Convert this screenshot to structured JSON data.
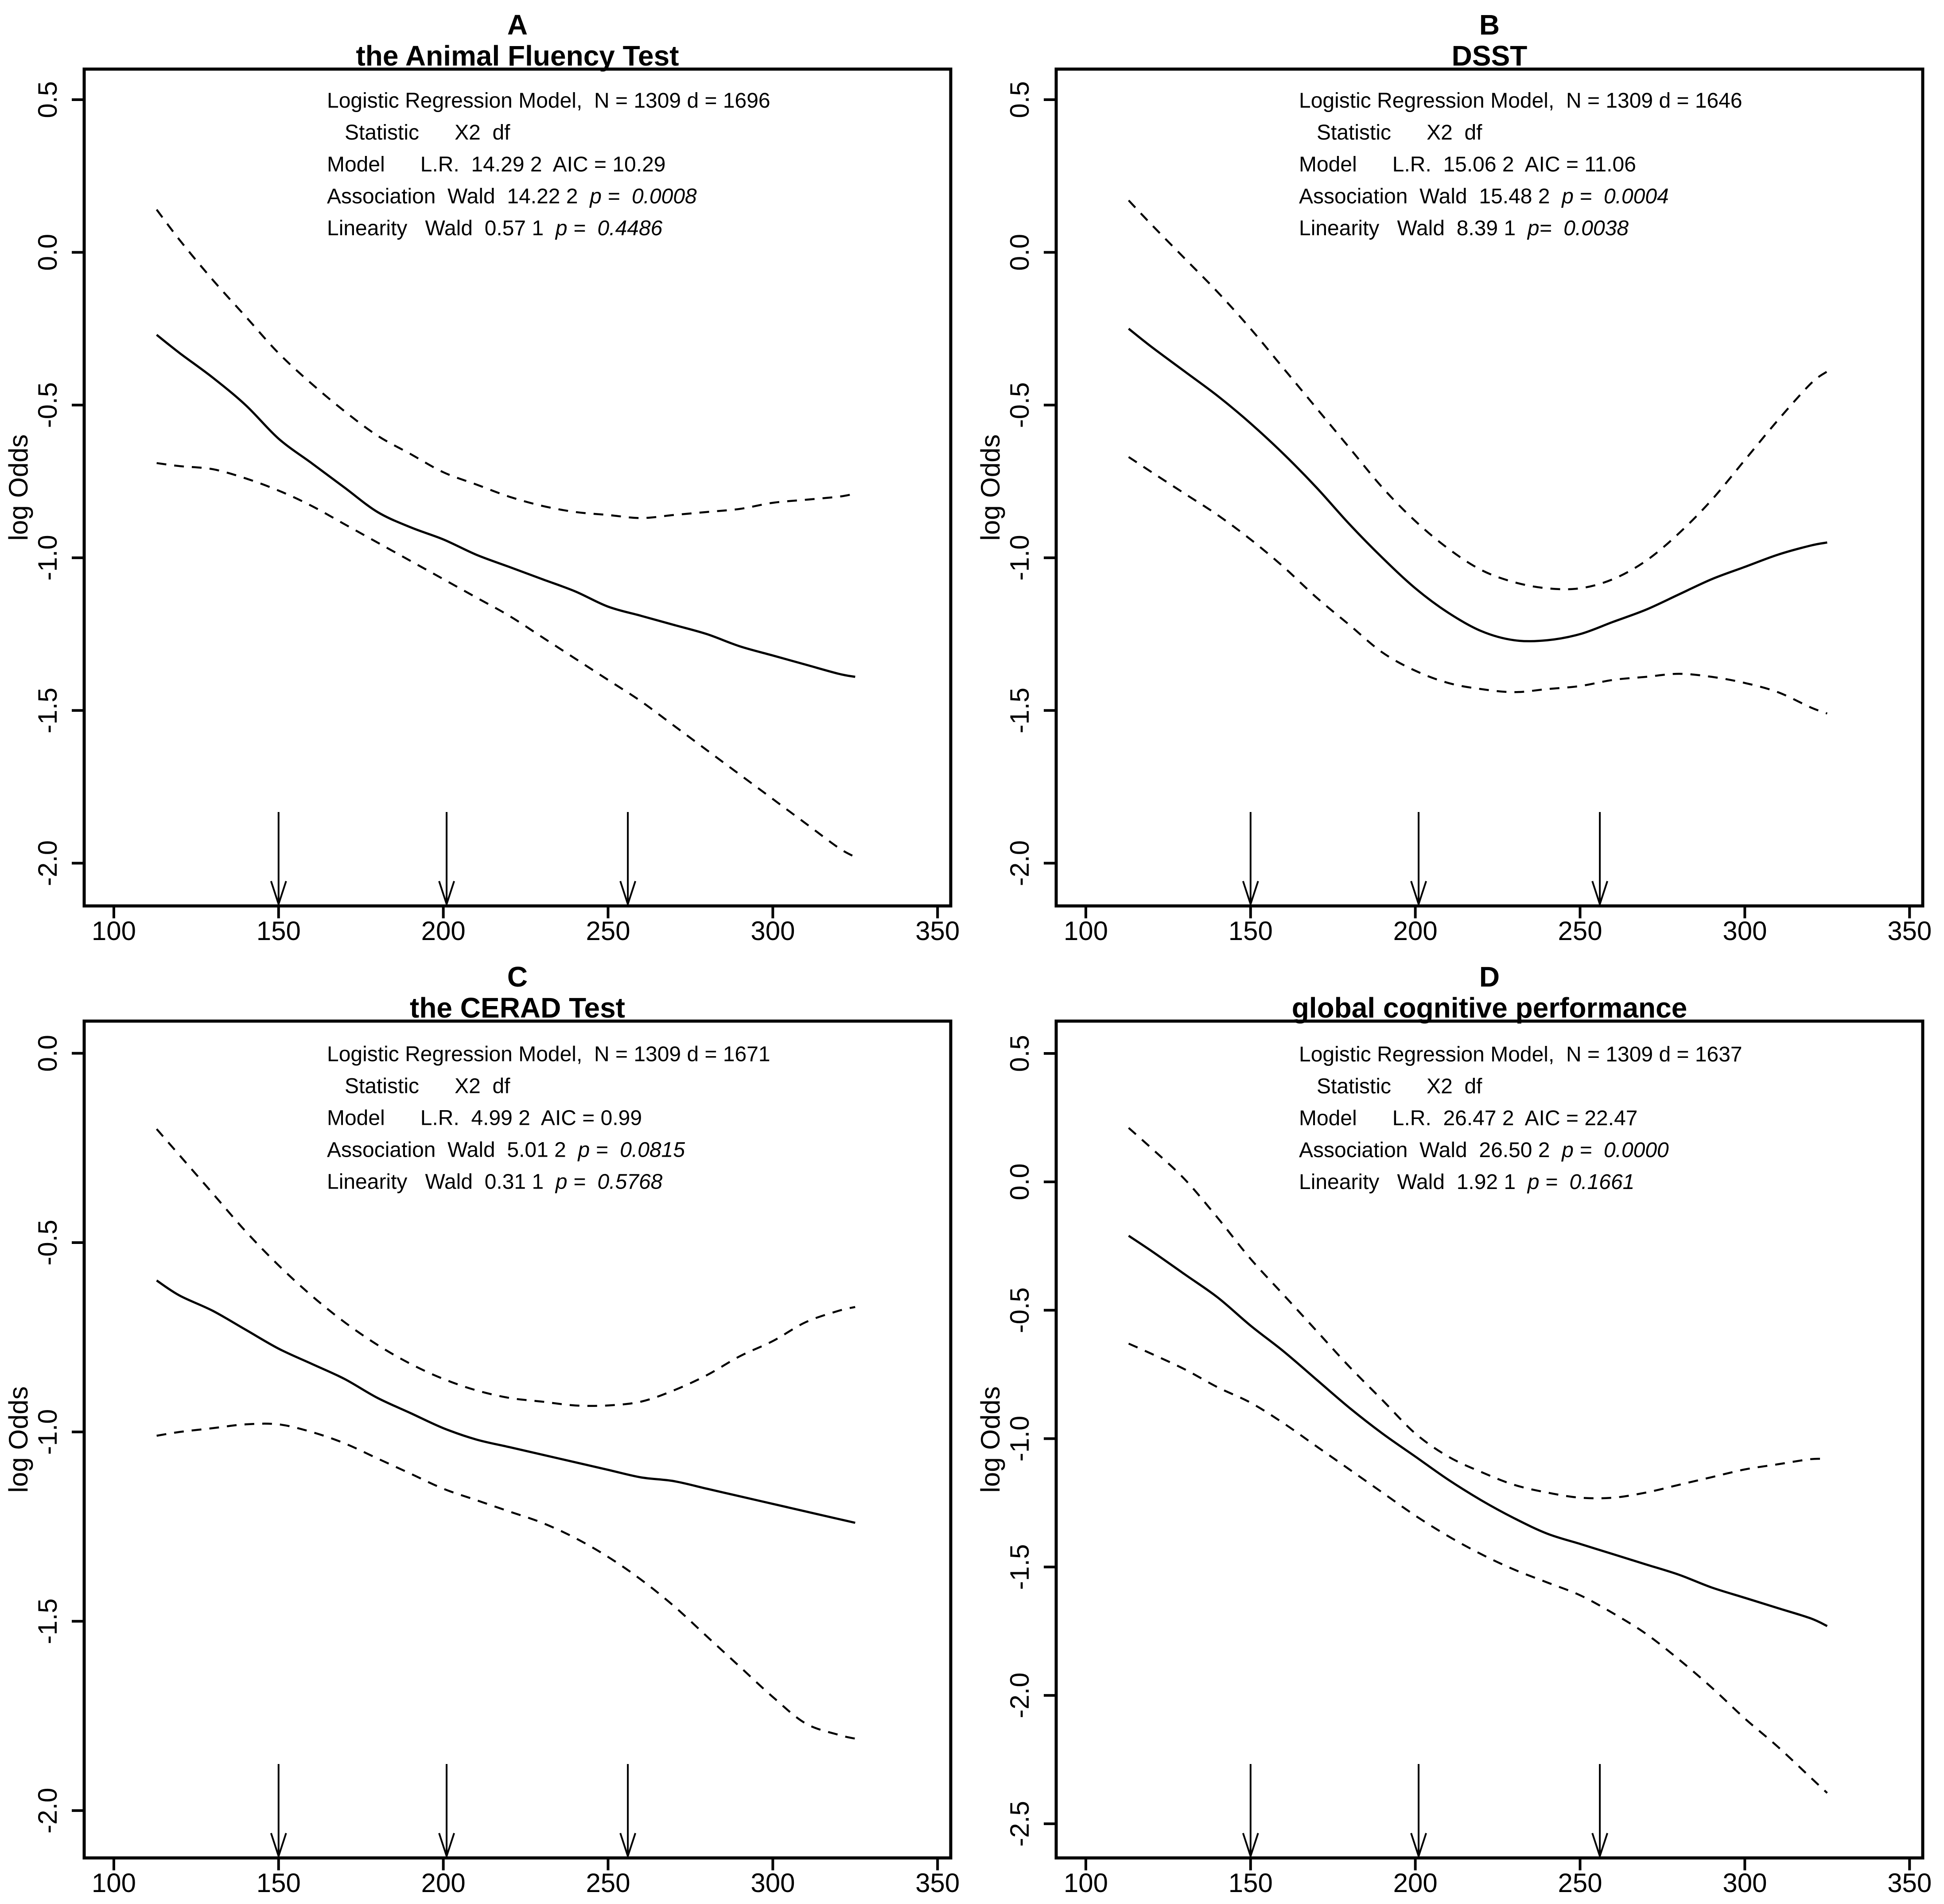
{
  "page": {
    "background": "#ffffff",
    "ink": "#000000"
  },
  "figure": {
    "description_visible_text_only": true,
    "panels_order": [
      "A",
      "B",
      "C",
      "D"
    ]
  },
  "chart_data": [
    {
      "type": "line",
      "panel_label": "A",
      "title": "the Animal Fluency Test",
      "ylabel": "log Odds",
      "xlabel": "",
      "grid": false,
      "legend": "none",
      "x_ticks": [
        100,
        150,
        200,
        250,
        300,
        350
      ],
      "y_tick_labels": [
        "0.5",
        "0.0",
        "-0.5",
        "-1.0",
        "-1.5",
        "-2.0"
      ],
      "x_range": [
        91,
        354
      ],
      "y_range": [
        0.6,
        -2.14
      ],
      "knot_arrows_x": [
        150,
        201,
        256
      ],
      "stats_lines": [
        {
          "text": "Logistic Regression Model,  N = 1309 d = 1696"
        },
        {
          "text": "   Statistic      X2  df"
        },
        {
          "text": "Model      L.R.  14.29 2  AIC = 10.29"
        },
        {
          "text": "Association  Wald  14.22 2  ",
          "italic": "p =  0.0008"
        },
        {
          "text": "Linearity   Wald  0.57 1  ",
          "italic": "p =  0.4486"
        }
      ],
      "x": [
        113,
        120,
        130,
        140,
        150,
        160,
        170,
        180,
        190,
        200,
        210,
        220,
        230,
        240,
        250,
        260,
        270,
        280,
        290,
        300,
        310,
        320,
        325
      ],
      "series": [
        {
          "name": "log odds estimate",
          "style": "solid",
          "values": [
            -0.27,
            -0.33,
            -0.41,
            -0.5,
            -0.61,
            -0.69,
            -0.77,
            -0.85,
            -0.9,
            -0.94,
            -0.99,
            -1.03,
            -1.07,
            -1.11,
            -1.16,
            -1.19,
            -1.22,
            -1.25,
            -1.29,
            -1.32,
            -1.35,
            -1.38,
            -1.39
          ]
        },
        {
          "name": "upper 95% CI",
          "style": "dashed",
          "values": [
            0.14,
            0.04,
            -0.09,
            -0.21,
            -0.33,
            -0.43,
            -0.52,
            -0.6,
            -0.66,
            -0.72,
            -0.76,
            -0.8,
            -0.83,
            -0.85,
            -0.86,
            -0.87,
            -0.86,
            -0.85,
            -0.84,
            -0.82,
            -0.81,
            -0.8,
            -0.79
          ]
        },
        {
          "name": "lower 95% CI",
          "style": "dashed",
          "values": [
            -0.69,
            -0.7,
            -0.71,
            -0.74,
            -0.78,
            -0.83,
            -0.89,
            -0.95,
            -1.01,
            -1.07,
            -1.13,
            -1.19,
            -1.26,
            -1.33,
            -1.4,
            -1.47,
            -1.55,
            -1.63,
            -1.71,
            -1.79,
            -1.87,
            -1.95,
            -1.98
          ]
        }
      ]
    },
    {
      "type": "line",
      "panel_label": "B",
      "title": "DSST",
      "ylabel": "log Odds",
      "xlabel": "",
      "grid": false,
      "legend": "none",
      "x_ticks": [
        100,
        150,
        200,
        250,
        300,
        350
      ],
      "y_tick_labels": [
        "0.5",
        "0.0",
        "-0.5",
        "-1.0",
        "-1.5",
        "-2.0"
      ],
      "x_range": [
        91,
        354
      ],
      "y_range": [
        0.6,
        -2.14
      ],
      "knot_arrows_x": [
        150,
        201,
        256
      ],
      "stats_lines": [
        {
          "text": "Logistic Regression Model,  N = 1309 d = 1646"
        },
        {
          "text": "   Statistic      X2  df"
        },
        {
          "text": "Model      L.R.  15.06 2  AIC = 11.06"
        },
        {
          "text": "Association  Wald  15.48 2  ",
          "italic": "p =  0.0004"
        },
        {
          "text": "Linearity   Wald  8.39 1  ",
          "italic": "p=  0.0038"
        }
      ],
      "x": [
        113,
        120,
        130,
        140,
        150,
        160,
        170,
        180,
        190,
        200,
        210,
        220,
        230,
        240,
        250,
        260,
        270,
        280,
        290,
        300,
        310,
        320,
        325
      ],
      "series": [
        {
          "name": "log odds estimate",
          "style": "solid",
          "values": [
            -0.25,
            -0.31,
            -0.39,
            -0.47,
            -0.56,
            -0.66,
            -0.77,
            -0.89,
            -1.0,
            -1.1,
            -1.18,
            -1.24,
            -1.27,
            -1.27,
            -1.25,
            -1.21,
            -1.17,
            -1.12,
            -1.07,
            -1.03,
            -0.99,
            -0.96,
            -0.95
          ]
        },
        {
          "name": "upper 95% CI",
          "style": "dashed",
          "values": [
            0.17,
            0.09,
            -0.02,
            -0.13,
            -0.25,
            -0.38,
            -0.51,
            -0.64,
            -0.77,
            -0.88,
            -0.97,
            -1.04,
            -1.08,
            -1.1,
            -1.1,
            -1.07,
            -1.01,
            -0.92,
            -0.81,
            -0.68,
            -0.55,
            -0.43,
            -0.39
          ]
        },
        {
          "name": "lower 95% CI",
          "style": "dashed",
          "values": [
            -0.67,
            -0.72,
            -0.79,
            -0.86,
            -0.94,
            -1.03,
            -1.13,
            -1.22,
            -1.31,
            -1.37,
            -1.41,
            -1.43,
            -1.44,
            -1.43,
            -1.42,
            -1.4,
            -1.39,
            -1.38,
            -1.39,
            -1.41,
            -1.44,
            -1.49,
            -1.51
          ]
        }
      ]
    },
    {
      "type": "line",
      "panel_label": "C",
      "title": "the CERAD Test",
      "ylabel": "log Odds",
      "xlabel": "",
      "grid": false,
      "legend": "none",
      "x_ticks": [
        100,
        150,
        200,
        250,
        300,
        350
      ],
      "y_tick_labels": [
        "0.0",
        "-0.5",
        "-1.0",
        "-1.5",
        "-2.0"
      ],
      "x_range": [
        91,
        354
      ],
      "y_range": [
        0.085,
        -2.125
      ],
      "knot_arrows_x": [
        150,
        201,
        256
      ],
      "stats_lines": [
        {
          "text": "Logistic Regression Model,  N = 1309 d = 1671"
        },
        {
          "text": "   Statistic      X2  df"
        },
        {
          "text": "Model      L.R.  4.99 2  AIC = 0.99"
        },
        {
          "text": "Association  Wald  5.01 2  ",
          "italic": "p =  0.0815"
        },
        {
          "text": "Linearity   Wald  0.31 1  ",
          "italic": "p =  0.5768"
        }
      ],
      "x": [
        113,
        120,
        130,
        140,
        150,
        160,
        170,
        180,
        190,
        200,
        210,
        220,
        230,
        240,
        250,
        260,
        270,
        280,
        290,
        300,
        310,
        320,
        325
      ],
      "series": [
        {
          "name": "log odds estimate",
          "style": "solid",
          "values": [
            -0.6,
            -0.64,
            -0.68,
            -0.73,
            -0.78,
            -0.82,
            -0.86,
            -0.91,
            -0.95,
            -0.99,
            -1.02,
            -1.04,
            -1.06,
            -1.08,
            -1.1,
            -1.12,
            -1.13,
            -1.15,
            -1.17,
            -1.19,
            -1.21,
            -1.23,
            -1.24
          ]
        },
        {
          "name": "upper 95% CI",
          "style": "dashed",
          "values": [
            -0.2,
            -0.27,
            -0.37,
            -0.47,
            -0.56,
            -0.64,
            -0.71,
            -0.77,
            -0.82,
            -0.86,
            -0.89,
            -0.91,
            -0.92,
            -0.93,
            -0.93,
            -0.92,
            -0.89,
            -0.85,
            -0.8,
            -0.76,
            -0.71,
            -0.68,
            -0.67
          ]
        },
        {
          "name": "lower 95% CI",
          "style": "dashed",
          "values": [
            -1.01,
            -1.0,
            -0.99,
            -0.98,
            -0.98,
            -1.0,
            -1.03,
            -1.07,
            -1.11,
            -1.15,
            -1.18,
            -1.21,
            -1.24,
            -1.28,
            -1.33,
            -1.39,
            -1.46,
            -1.54,
            -1.62,
            -1.7,
            -1.77,
            -1.8,
            -1.81
          ]
        }
      ]
    },
    {
      "type": "line",
      "panel_label": "D",
      "title": "global cognitive performance",
      "ylabel": "log Odds",
      "xlabel": "",
      "grid": false,
      "legend": "none",
      "x_ticks": [
        100,
        150,
        200,
        250,
        300,
        350
      ],
      "y_tick_labels": [
        "0.5",
        "0.0",
        "-0.5",
        "-1.0",
        "-1.5",
        "-2.0",
        "-2.5"
      ],
      "x_range": [
        91,
        354
      ],
      "y_range": [
        0.626,
        -2.633
      ],
      "knot_arrows_x": [
        150,
        201,
        256
      ],
      "stats_lines": [
        {
          "text": "Logistic Regression Model,  N = 1309 d = 1637"
        },
        {
          "text": "   Statistic      X2  df"
        },
        {
          "text": "Model      L.R.  26.47 2  AIC = 22.47"
        },
        {
          "text": "Association  Wald  26.50 2  ",
          "italic": "p =  0.0000"
        },
        {
          "text": "Linearity   Wald  1.92 1  ",
          "italic": "p =  0.1661"
        }
      ],
      "x": [
        113,
        120,
        130,
        140,
        150,
        160,
        170,
        180,
        190,
        200,
        210,
        220,
        230,
        240,
        250,
        260,
        270,
        280,
        290,
        300,
        310,
        320,
        325
      ],
      "series": [
        {
          "name": "log odds estimate",
          "style": "solid",
          "values": [
            -0.21,
            -0.27,
            -0.36,
            -0.45,
            -0.56,
            -0.66,
            -0.77,
            -0.88,
            -0.98,
            -1.07,
            -1.16,
            -1.24,
            -1.31,
            -1.37,
            -1.41,
            -1.45,
            -1.49,
            -1.53,
            -1.58,
            -1.62,
            -1.66,
            -1.7,
            -1.73
          ]
        },
        {
          "name": "upper 95% CI",
          "style": "dashed",
          "values": [
            0.21,
            0.13,
            0.01,
            -0.14,
            -0.3,
            -0.44,
            -0.58,
            -0.72,
            -0.85,
            -0.98,
            -1.07,
            -1.13,
            -1.18,
            -1.21,
            -1.23,
            -1.23,
            -1.21,
            -1.18,
            -1.15,
            -1.12,
            -1.1,
            -1.08,
            -1.08
          ]
        },
        {
          "name": "lower 95% CI",
          "style": "dashed",
          "values": [
            -0.63,
            -0.67,
            -0.73,
            -0.8,
            -0.86,
            -0.94,
            -1.03,
            -1.12,
            -1.21,
            -1.3,
            -1.38,
            -1.45,
            -1.51,
            -1.56,
            -1.61,
            -1.68,
            -1.76,
            -1.86,
            -1.97,
            -2.09,
            -2.2,
            -2.32,
            -2.38
          ]
        }
      ]
    }
  ]
}
